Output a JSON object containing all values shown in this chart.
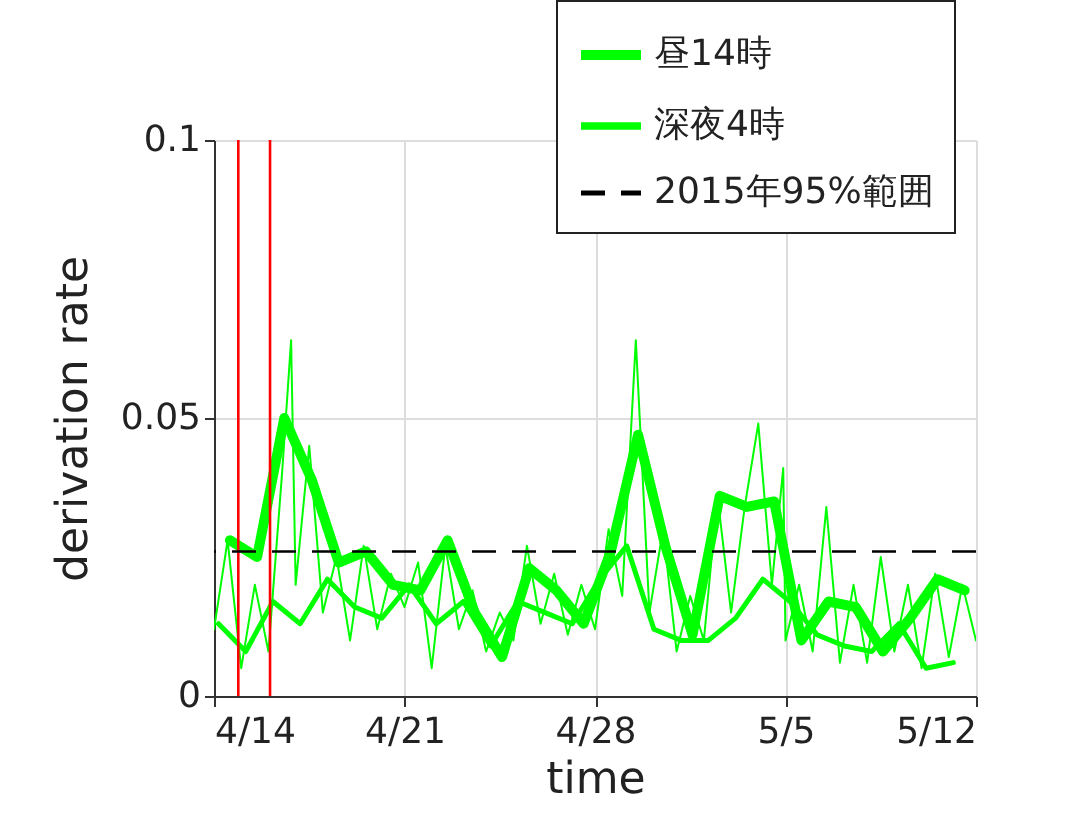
{
  "chart_data": {
    "type": "line",
    "xlabel": "time",
    "ylabel": "derivation rate",
    "xlim": [
      "--04-14",
      "--05-12"
    ],
    "xticks": [
      {
        "value": "--04-14",
        "label": "4/14"
      },
      {
        "value": "--04-21",
        "label": "4/21"
      },
      {
        "value": "--04-28",
        "label": "4/28"
      },
      {
        "value": "--05-05",
        "label": "5/5"
      },
      {
        "value": "--05-12",
        "label": "5/12"
      }
    ],
    "ylim": [
      0,
      0.1
    ],
    "yticks": [
      0,
      0.05,
      0.1
    ],
    "grid": true,
    "legend": "top right",
    "legend_title": null,
    "series": [
      {
        "color": "#00ff00",
        "x": [
          "--04-14T00:00",
          "--04-14T12:00",
          "--04-15T00:00",
          "--04-15T12:00",
          "--04-16T00:00",
          "--04-16T12:00",
          "--04-16T20:00",
          "--04-17T00:00",
          "--04-17T12:00",
          "--04-18T00:00",
          "--04-18T12:00",
          "--04-19T00:00",
          "--04-19T12:00",
          "--04-20T00:00",
          "--04-20T12:00",
          "--04-21T00:00",
          "--04-21T12:00",
          "--04-22T00:00",
          "--04-22T12:00",
          "--04-23T00:00",
          "--04-23T12:00",
          "--04-24T00:00",
          "--04-24T12:00",
          "--04-25T00:00",
          "--04-25T12:00",
          "--04-26T00:00",
          "--04-26T12:00",
          "--04-27T00:00",
          "--04-27T12:00",
          "--04-28T00:00",
          "--04-28T12:00",
          "--04-29T00:00",
          "--04-29T12:00",
          "--04-30T00:00",
          "--04-30T12:00",
          "--05-01T00:00",
          "--05-01T12:00",
          "--05-02T00:00",
          "--05-02T12:00",
          "--05-03T00:00",
          "--05-03T12:00",
          "--05-04T00:00",
          "--05-04T12:00",
          "--05-04T22:00",
          "--05-05T00:00",
          "--05-05T12:00",
          "--05-06T00:00",
          "--05-06T12:00",
          "--05-07T00:00",
          "--05-07T12:00",
          "--05-08T00:00",
          "--05-08T12:00",
          "--05-09T00:00",
          "--05-09T12:00",
          "--05-10T00:00",
          "--05-10T12:00",
          "--05-11T00:00",
          "--05-11T12:00",
          "--05-12T00:00"
        ],
        "values": [
          0.012,
          0.028,
          0.005,
          0.02,
          0.008,
          0.04,
          0.064,
          0.02,
          0.045,
          0.015,
          0.025,
          0.01,
          0.027,
          0.012,
          0.022,
          0.016,
          0.024,
          0.005,
          0.027,
          0.012,
          0.019,
          0.008,
          0.015,
          0.01,
          0.027,
          0.013,
          0.022,
          0.011,
          0.02,
          0.012,
          0.03,
          0.018,
          0.064,
          0.015,
          0.03,
          0.008,
          0.018,
          0.01,
          0.036,
          0.015,
          0.034,
          0.049,
          0.02,
          0.041,
          0.01,
          0.02,
          0.008,
          0.034,
          0.006,
          0.02,
          0.006,
          0.025,
          0.008,
          0.02,
          0.005,
          0.022,
          0.007,
          0.02,
          0.01
        ]
      },
      {
        "name": "昼14時",
        "color": "#00ff00",
        "x": [
          "--04-14T14:00",
          "--04-15T14:00",
          "--04-16T14:00",
          "--04-17T14:00",
          "--04-18T14:00",
          "--04-19T14:00",
          "--04-20T14:00",
          "--04-21T14:00",
          "--04-22T14:00",
          "--04-23T14:00",
          "--04-24T14:00",
          "--04-25T14:00",
          "--04-26T14:00",
          "--04-27T14:00",
          "--04-28T14:00",
          "--04-29T14:00",
          "--04-30T14:00",
          "--05-01T14:00",
          "--05-02T14:00",
          "--05-03T14:00",
          "--05-04T14:00",
          "--05-05T14:00",
          "--05-06T14:00",
          "--05-07T14:00",
          "--05-08T14:00",
          "--05-09T14:00",
          "--05-10T14:00",
          "--05-11T14:00"
        ],
        "values": [
          0.028,
          0.025,
          0.05,
          0.039,
          0.024,
          0.026,
          0.02,
          0.019,
          0.028,
          0.015,
          0.007,
          0.023,
          0.019,
          0.013,
          0.026,
          0.047,
          0.027,
          0.011,
          0.036,
          0.034,
          0.035,
          0.01,
          0.017,
          0.016,
          0.008,
          0.014,
          0.021,
          0.019
        ]
      },
      {
        "name": "深夜4時",
        "color": "#00ff00",
        "x": [
          "--04-14T04:00",
          "--04-15T04:00",
          "--04-16T04:00",
          "--04-17T04:00",
          "--04-18T04:00",
          "--04-19T04:00",
          "--04-20T04:00",
          "--04-21T04:00",
          "--04-22T04:00",
          "--04-23T04:00",
          "--04-24T04:00",
          "--04-25T04:00",
          "--04-26T04:00",
          "--04-27T04:00",
          "--04-28T04:00",
          "--04-29T04:00",
          "--04-30T04:00",
          "--05-01T04:00",
          "--05-02T04:00",
          "--05-03T04:00",
          "--05-04T04:00",
          "--05-05T04:00",
          "--05-06T04:00",
          "--05-07T04:00",
          "--05-08T04:00",
          "--05-09T04:00",
          "--05-10T04:00",
          "--05-11T04:00"
        ],
        "values": [
          0.013,
          0.008,
          0.017,
          0.013,
          0.021,
          0.016,
          0.014,
          0.02,
          0.013,
          0.017,
          0.009,
          0.017,
          0.015,
          0.013,
          0.021,
          0.027,
          0.012,
          0.01,
          0.01,
          0.014,
          0.021,
          0.017,
          0.011,
          0.009,
          0.008,
          0.013,
          0.005,
          0.006
        ]
      }
    ],
    "ref_lines": [
      {
        "axis": "x",
        "value": "--04-14T21:26",
        "color": "#ff0000"
      },
      {
        "axis": "x",
        "value": "--04-16T01:25",
        "color": "#ff0000"
      },
      {
        "axis": "y",
        "value": 0.026,
        "label": "2015年95%範囲",
        "color": "#000000",
        "line_style": "dashed"
      }
    ]
  }
}
